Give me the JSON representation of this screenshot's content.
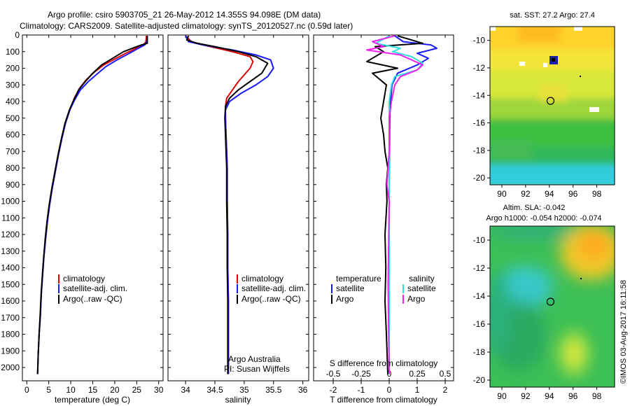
{
  "header": {
    "line1": "Argo profile: csiro 5903705_21 26-May-2012 14.355S 94.098E (DM data)",
    "line2": "Climatology: CARS2009. Satellite-adjusted climatology: synTS_20120527.nc (0.59d later)"
  },
  "colors": {
    "climatology": "#e00000",
    "satellite": "#1a1aff",
    "argo": "#000000",
    "satellite_salinity": "#33dddd",
    "argo_salinity": "#ee22ee"
  },
  "legend": {
    "climatology": "climatology",
    "satellite_adj": "satellite-adj. clim.",
    "argo": "Argo(..raw -QC)"
  },
  "diff_legend": {
    "temperature_header": "temperature",
    "salinity_header": "salinity",
    "satellite": "satellite",
    "argo": "Argo"
  },
  "credits": {
    "line1": "Argo Australia",
    "line2": "PI: Susan Wijffels"
  },
  "chart_data": [
    {
      "type": "line",
      "xlabel": "temperature (deg C)",
      "ylabel": "",
      "xlim": [
        -1,
        31
      ],
      "ylim": [
        2080,
        0
      ],
      "y_inverted": true,
      "xticks": [
        0,
        5,
        10,
        15,
        20,
        25,
        30
      ],
      "yticks": [
        0,
        100,
        200,
        300,
        400,
        500,
        600,
        700,
        800,
        900,
        1000,
        1100,
        1200,
        1300,
        1400,
        1500,
        1600,
        1700,
        1800,
        1900,
        2000
      ],
      "series": [
        {
          "name": "climatology",
          "color": "#e00000",
          "points": [
            [
              27.2,
              5
            ],
            [
              27.1,
              40
            ],
            [
              26.5,
              60
            ],
            [
              24.5,
              85
            ],
            [
              22.5,
              110
            ],
            [
              20,
              145
            ],
            [
              17.5,
              180
            ],
            [
              15.5,
              220
            ],
            [
              13.5,
              270
            ],
            [
              12,
              320
            ],
            [
              10.8,
              380
            ],
            [
              9.8,
              450
            ],
            [
              8.8,
              530
            ],
            [
              8.0,
              620
            ],
            [
              7.2,
              720
            ],
            [
              6.5,
              820
            ],
            [
              5.8,
              920
            ],
            [
              5.2,
              1020
            ],
            [
              4.7,
              1120
            ],
            [
              4.3,
              1220
            ],
            [
              3.9,
              1330
            ],
            [
              3.6,
              1440
            ],
            [
              3.3,
              1560
            ],
            [
              3.1,
              1680
            ],
            [
              2.8,
              1800
            ],
            [
              2.6,
              1920
            ],
            [
              2.45,
              2040
            ]
          ]
        },
        {
          "name": "satellite-adj. clim.",
          "color": "#1a1aff",
          "points": [
            [
              27.4,
              5
            ],
            [
              27.3,
              40
            ],
            [
              26.8,
              60
            ],
            [
              25,
              85
            ],
            [
              23,
              115
            ],
            [
              20.5,
              150
            ],
            [
              18,
              190
            ],
            [
              16.2,
              230
            ],
            [
              14,
              280
            ],
            [
              12.2,
              330
            ],
            [
              10.9,
              390
            ],
            [
              9.8,
              450
            ],
            [
              8.8,
              530
            ],
            [
              8.0,
              620
            ],
            [
              7.2,
              720
            ],
            [
              6.5,
              820
            ],
            [
              5.8,
              920
            ],
            [
              5.2,
              1020
            ],
            [
              4.7,
              1120
            ],
            [
              4.3,
              1220
            ],
            [
              3.9,
              1330
            ],
            [
              3.6,
              1440
            ],
            [
              3.3,
              1560
            ],
            [
              3.1,
              1680
            ],
            [
              2.8,
              1800
            ],
            [
              2.6,
              1920
            ],
            [
              2.45,
              2040
            ]
          ]
        },
        {
          "name": "Argo(..raw -QC)",
          "color": "#000000",
          "points": [
            [
              27.4,
              5
            ],
            [
              27.4,
              50
            ],
            [
              26,
              60
            ],
            [
              24.5,
              75
            ],
            [
              22,
              100
            ],
            [
              19.5,
              140
            ],
            [
              17,
              180
            ],
            [
              15,
              230
            ],
            [
              13.3,
              280
            ],
            [
              11.8,
              330
            ],
            [
              10.7,
              390
            ],
            [
              9.7,
              450
            ],
            [
              8.7,
              530
            ],
            [
              7.9,
              620
            ],
            [
              7.1,
              720
            ],
            [
              6.4,
              820
            ],
            [
              5.7,
              920
            ],
            [
              5.1,
              1020
            ],
            [
              4.6,
              1120
            ],
            [
              4.2,
              1220
            ],
            [
              3.85,
              1330
            ],
            [
              3.55,
              1440
            ],
            [
              3.25,
              1560
            ],
            [
              3.05,
              1680
            ],
            [
              2.8,
              1800
            ],
            [
              2.6,
              1920
            ],
            [
              2.45,
              2040
            ]
          ]
        }
      ]
    },
    {
      "type": "line",
      "xlabel": "salinity",
      "ylabel": "",
      "xlim": [
        33.7,
        36.1
      ],
      "ylim": [
        2080,
        0
      ],
      "y_inverted": true,
      "xticks": [
        34,
        34.5,
        35,
        35.5,
        36
      ],
      "series": [
        {
          "name": "climatology",
          "color": "#e00000",
          "points": [
            [
              34.0,
              5
            ],
            [
              34.1,
              40
            ],
            [
              34.3,
              60
            ],
            [
              34.8,
              100
            ],
            [
              35.1,
              130
            ],
            [
              35.15,
              160
            ],
            [
              35.1,
              200
            ],
            [
              35.0,
              240
            ],
            [
              34.9,
              280
            ],
            [
              34.8,
              330
            ],
            [
              34.7,
              380
            ],
            [
              34.68,
              430
            ],
            [
              34.68,
              500
            ],
            [
              34.69,
              600
            ],
            [
              34.7,
              700
            ],
            [
              34.71,
              800
            ],
            [
              34.71,
              900
            ],
            [
              34.71,
              1000
            ],
            [
              34.72,
              1200
            ],
            [
              34.72,
              1400
            ],
            [
              34.73,
              1600
            ],
            [
              34.73,
              1800
            ],
            [
              34.73,
              2040
            ]
          ]
        },
        {
          "name": "satellite-adj. clim.",
          "color": "#1a1aff",
          "points": [
            [
              34.0,
              5
            ],
            [
              34.05,
              40
            ],
            [
              34.3,
              60
            ],
            [
              34.8,
              90
            ],
            [
              35.2,
              120
            ],
            [
              35.45,
              150
            ],
            [
              35.5,
              200
            ],
            [
              35.4,
              250
            ],
            [
              35.2,
              300
            ],
            [
              34.95,
              350
            ],
            [
              34.75,
              400
            ],
            [
              34.68,
              450
            ],
            [
              34.68,
              500
            ],
            [
              34.69,
              600
            ],
            [
              34.7,
              700
            ],
            [
              34.71,
              800
            ],
            [
              34.71,
              900
            ],
            [
              34.71,
              1000
            ],
            [
              34.72,
              1200
            ],
            [
              34.72,
              1400
            ],
            [
              34.73,
              1600
            ],
            [
              34.73,
              1800
            ],
            [
              34.73,
              2040
            ]
          ]
        },
        {
          "name": "Argo(..raw -QC)",
          "color": "#000000",
          "points": [
            [
              34.05,
              5
            ],
            [
              34.02,
              30
            ],
            [
              34.2,
              50
            ],
            [
              34.5,
              70
            ],
            [
              34.9,
              100
            ],
            [
              35.2,
              130
            ],
            [
              35.4,
              170
            ],
            [
              35.35,
              200
            ],
            [
              35.3,
              230
            ],
            [
              35.1,
              280
            ],
            [
              34.9,
              330
            ],
            [
              34.75,
              380
            ],
            [
              34.68,
              430
            ],
            [
              34.67,
              500
            ],
            [
              34.68,
              600
            ],
            [
              34.69,
              700
            ],
            [
              34.7,
              800
            ],
            [
              34.7,
              900
            ],
            [
              34.7,
              1000
            ],
            [
              34.71,
              1200
            ],
            [
              34.71,
              1400
            ],
            [
              34.72,
              1600
            ],
            [
              34.72,
              1800
            ],
            [
              34.72,
              2040
            ]
          ]
        }
      ]
    },
    {
      "type": "line",
      "xlabel": "T difference from climatology",
      "ylabel": "",
      "top_label": "S difference from climatology",
      "xlim": [
        -2.7,
        2.3
      ],
      "ylim": [
        2080,
        0
      ],
      "y_inverted": true,
      "xticks": [
        -2,
        -1,
        0,
        1,
        2
      ],
      "salinity_ticks": [
        -0.5,
        -0.25,
        0,
        0.25,
        0.5
      ],
      "series": [
        {
          "name": "temperature satellite",
          "color": "#1a1aff",
          "points": [
            [
              0.2,
              5
            ],
            [
              0.5,
              40
            ],
            [
              1.5,
              60
            ],
            [
              1.7,
              80
            ],
            [
              1.0,
              110
            ],
            [
              1.4,
              140
            ],
            [
              1.0,
              180
            ],
            [
              0.3,
              230
            ],
            [
              0.1,
              300
            ],
            [
              0.05,
              400
            ],
            [
              0.02,
              500
            ],
            [
              0.01,
              700
            ],
            [
              0,
              1000
            ],
            [
              0,
              2040
            ]
          ]
        },
        {
          "name": "temperature Argo",
          "color": "#000000",
          "points": [
            [
              0.3,
              5
            ],
            [
              1.2,
              50
            ],
            [
              -0.5,
              70
            ],
            [
              -0.2,
              100
            ],
            [
              -0.8,
              160
            ],
            [
              0.3,
              200
            ],
            [
              -0.6,
              230
            ],
            [
              -0.1,
              300
            ],
            [
              -0.2,
              400
            ],
            [
              -0.3,
              500
            ],
            [
              -0.2,
              600
            ],
            [
              -0.15,
              700
            ],
            [
              -0.05,
              800
            ],
            [
              -0.1,
              900
            ],
            [
              -0.08,
              1000
            ],
            [
              -0.15,
              1200
            ],
            [
              -0.12,
              1400
            ],
            [
              -0.15,
              1600
            ],
            [
              -0.1,
              1800
            ],
            [
              -0.05,
              2040
            ]
          ]
        },
        {
          "name": "salinity satellite",
          "color": "#33dddd",
          "points": [
            [
              0,
              5
            ],
            [
              -0.12,
              50
            ],
            [
              0.1,
              80
            ],
            [
              0.03,
              100
            ],
            [
              0.2,
              130
            ],
            [
              0.3,
              170
            ],
            [
              0.25,
              210
            ],
            [
              0.05,
              250
            ],
            [
              0.02,
              300
            ],
            [
              0,
              400
            ],
            [
              0,
              600
            ],
            [
              0,
              1000
            ],
            [
              0,
              2040
            ]
          ]
        },
        {
          "name": "salinity Argo",
          "color": "#ee22ee",
          "points": [
            [
              0.05,
              5
            ],
            [
              -0.15,
              40
            ],
            [
              -0.05,
              70
            ],
            [
              -0.2,
              90
            ],
            [
              0.1,
              120
            ],
            [
              0.2,
              150
            ],
            [
              0.3,
              180
            ],
            [
              0.25,
              210
            ],
            [
              0.1,
              250
            ],
            [
              0.05,
              300
            ],
            [
              0.02,
              400
            ],
            [
              0,
              500
            ],
            [
              0,
              700
            ],
            [
              -0.02,
              900
            ],
            [
              0,
              1000
            ],
            [
              -0.01,
              1500
            ],
            [
              0,
              2040
            ]
          ]
        }
      ]
    },
    {
      "type": "heatmap",
      "title": "sat. SST: 27.2 Argo: 27.4",
      "xlim": [
        89,
        99.5
      ],
      "ylim": [
        -20.5,
        -9
      ],
      "xticks": [
        90,
        92,
        94,
        96,
        98
      ],
      "yticks": [
        -10,
        -12,
        -14,
        -16,
        -18,
        -20
      ],
      "marker": {
        "lon": 94.1,
        "lat": -14.4
      }
    },
    {
      "type": "heatmap",
      "title": "Altim. SLA: -0.042",
      "subtitle": "Argo h1000: -0.054 h2000: -0.074",
      "xlim": [
        89,
        99.5
      ],
      "ylim": [
        -20.5,
        -9
      ],
      "xticks": [
        90,
        92,
        94,
        96,
        98
      ],
      "yticks": [
        -10,
        -12,
        -14,
        -16,
        -18,
        -20
      ],
      "marker": {
        "lon": 94.1,
        "lat": -14.4
      }
    }
  ],
  "watermark": "©IMOS 03-Aug-2017 16:11:58"
}
